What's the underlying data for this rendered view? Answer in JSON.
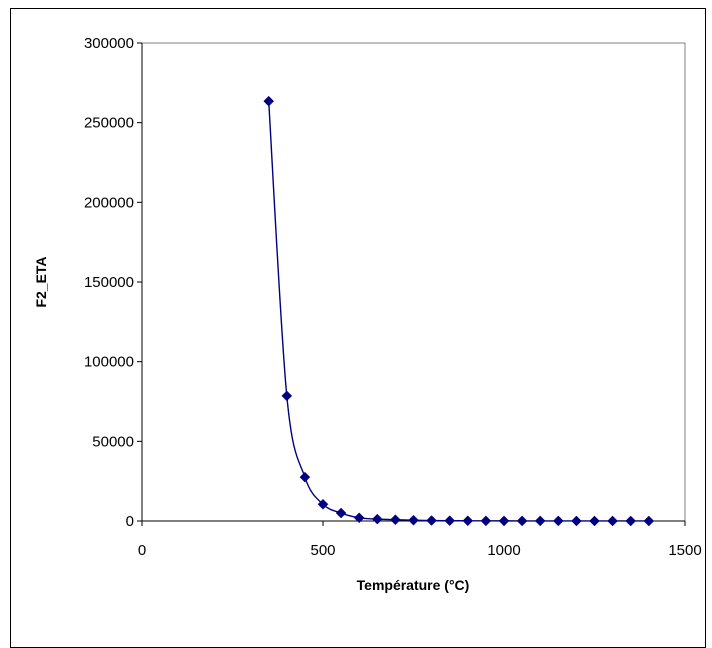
{
  "chart_data": {
    "type": "scatter",
    "title": "",
    "xlabel": "Température (°C)",
    "ylabel": "F2_ETA",
    "xlim": [
      0,
      1500
    ],
    "ylim": [
      0,
      300000
    ],
    "xticks": [
      "0",
      "500",
      "1000",
      "1500"
    ],
    "yticks": [
      "0",
      "50000",
      "100000",
      "150000",
      "200000",
      "250000",
      "300000"
    ],
    "grid": false,
    "legend": "none",
    "series": [
      {
        "color": "#000080",
        "marker": "diamond",
        "line": "smooth",
        "x": [
          350,
          400,
          450,
          500,
          550,
          600,
          650,
          700,
          750,
          800,
          850,
          900,
          950,
          1000,
          1050,
          1100,
          1150,
          1200,
          1250,
          1300,
          1350,
          1400
        ],
        "y": [
          263500,
          78500,
          27500,
          10500,
          5000,
          2000,
          1200,
          800,
          500,
          300,
          200,
          150,
          100,
          80,
          60,
          50,
          40,
          30,
          25,
          20,
          15,
          10
        ]
      }
    ]
  }
}
